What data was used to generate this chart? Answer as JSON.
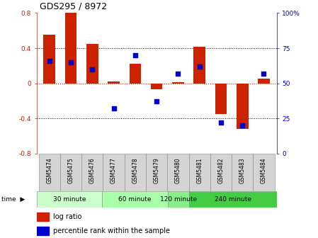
{
  "title": "GDS295 / 8972",
  "samples": [
    "GSM5474",
    "GSM5475",
    "GSM5476",
    "GSM5477",
    "GSM5478",
    "GSM5479",
    "GSM5480",
    "GSM5481",
    "GSM5482",
    "GSM5483",
    "GSM5484"
  ],
  "log_ratio": [
    0.55,
    0.8,
    0.45,
    0.02,
    0.22,
    -0.07,
    0.01,
    0.42,
    -0.35,
    -0.52,
    0.05
  ],
  "percentile": [
    66,
    65,
    60,
    32,
    70,
    37,
    57,
    62,
    22,
    20,
    57
  ],
  "bar_color": "#cc2200",
  "dot_color": "#0000cc",
  "ylim_left": [
    -0.8,
    0.8
  ],
  "ylim_right": [
    0,
    100
  ],
  "yticks_left": [
    -0.8,
    -0.4,
    0.0,
    0.4,
    0.8
  ],
  "ytick_labels_left": [
    "-0.8",
    "-0.4",
    "0",
    "0.4",
    "0.8"
  ],
  "yticks_right": [
    0,
    25,
    50,
    75,
    100
  ],
  "ytick_labels_right": [
    "0",
    "25",
    "50",
    "75",
    "100%"
  ],
  "bar_width": 0.55,
  "dot_size": 18,
  "group_configs": [
    {
      "label": "30 minute",
      "start": 0,
      "end": 3,
      "color": "#ccffcc"
    },
    {
      "label": "60 minute",
      "start": 3,
      "end": 6,
      "color": "#aaffaa"
    },
    {
      "label": "120 minute",
      "start": 6,
      "end": 7,
      "color": "#88ee88"
    },
    {
      "label": "240 minute",
      "start": 7,
      "end": 11,
      "color": "#44cc44"
    }
  ],
  "sample_bg": "#d4d4d4"
}
